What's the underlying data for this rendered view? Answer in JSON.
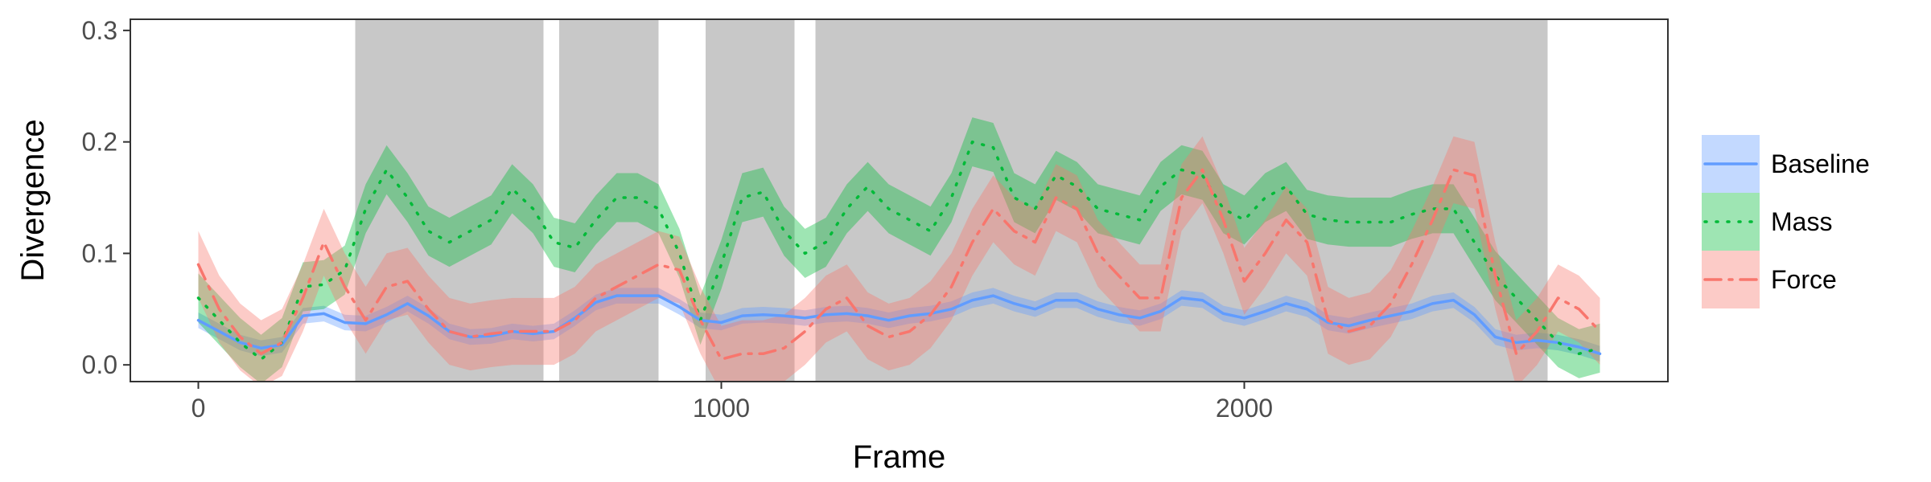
{
  "chart_data": {
    "type": "line",
    "xlabel": "Frame",
    "ylabel": "Divergence",
    "xlim": [
      -130,
      2810
    ],
    "ylim": [
      -0.015,
      0.31
    ],
    "xticks": [
      0,
      1000,
      2000
    ],
    "yticks": [
      0.0,
      0.1,
      0.2,
      0.3
    ],
    "ytick_labels": [
      "0.0",
      "0.1",
      "0.2",
      "0.3"
    ],
    "grid": false,
    "legend_position": "right",
    "shaded_intervals": [
      [
        300,
        660
      ],
      [
        690,
        880
      ],
      [
        970,
        1140
      ],
      [
        1180,
        2580
      ]
    ],
    "shade_color": "#c8c8c8",
    "x": [
      0,
      40,
      80,
      120,
      160,
      200,
      240,
      280,
      320,
      360,
      400,
      440,
      480,
      520,
      560,
      600,
      640,
      680,
      720,
      760,
      800,
      840,
      880,
      920,
      960,
      1000,
      1040,
      1080,
      1120,
      1160,
      1200,
      1240,
      1280,
      1320,
      1360,
      1400,
      1440,
      1480,
      1520,
      1560,
      1600,
      1640,
      1680,
      1720,
      1760,
      1800,
      1840,
      1880,
      1920,
      1960,
      2000,
      2040,
      2080,
      2120,
      2160,
      2200,
      2240,
      2280,
      2320,
      2360,
      2400,
      2440,
      2480,
      2520,
      2560,
      2600,
      2640,
      2680
    ],
    "series": [
      {
        "name": "Baseline",
        "color": "#619CFF",
        "line_style": "solid",
        "values": [
          0.04,
          0.03,
          0.02,
          0.015,
          0.018,
          0.044,
          0.046,
          0.038,
          0.037,
          0.045,
          0.055,
          0.044,
          0.03,
          0.025,
          0.026,
          0.03,
          0.028,
          0.03,
          0.042,
          0.056,
          0.062,
          0.062,
          0.062,
          0.052,
          0.04,
          0.038,
          0.044,
          0.045,
          0.044,
          0.042,
          0.045,
          0.046,
          0.044,
          0.04,
          0.044,
          0.046,
          0.05,
          0.058,
          0.062,
          0.055,
          0.05,
          0.058,
          0.058,
          0.05,
          0.045,
          0.042,
          0.048,
          0.06,
          0.058,
          0.046,
          0.042,
          0.048,
          0.055,
          0.05,
          0.038,
          0.035,
          0.04,
          0.044,
          0.048,
          0.055,
          0.058,
          0.045,
          0.025,
          0.02,
          0.022,
          0.02,
          0.016,
          0.01
        ],
        "band": 0.007
      },
      {
        "name": "Mass",
        "color": "#00BA38",
        "line_style": "dotted",
        "values": [
          0.06,
          0.04,
          0.02,
          0.005,
          0.02,
          0.07,
          0.072,
          0.085,
          0.14,
          0.175,
          0.15,
          0.12,
          0.11,
          0.12,
          0.13,
          0.158,
          0.14,
          0.11,
          0.105,
          0.13,
          0.15,
          0.15,
          0.14,
          0.1,
          0.04,
          0.09,
          0.15,
          0.155,
          0.12,
          0.1,
          0.11,
          0.14,
          0.16,
          0.14,
          0.13,
          0.12,
          0.15,
          0.2,
          0.195,
          0.15,
          0.14,
          0.17,
          0.16,
          0.14,
          0.135,
          0.13,
          0.16,
          0.175,
          0.17,
          0.14,
          0.13,
          0.15,
          0.16,
          0.135,
          0.13,
          0.128,
          0.128,
          0.128,
          0.135,
          0.14,
          0.14,
          0.11,
          0.08,
          0.06,
          0.04,
          0.02,
          0.01,
          0.015
        ],
        "band": 0.022
      },
      {
        "name": "Force",
        "color": "#F8766D",
        "line_style": "dashdot",
        "values": [
          0.09,
          0.05,
          0.025,
          0.01,
          0.02,
          0.06,
          0.11,
          0.07,
          0.04,
          0.07,
          0.075,
          0.05,
          0.03,
          0.025,
          0.028,
          0.03,
          0.03,
          0.03,
          0.04,
          0.06,
          0.07,
          0.08,
          0.09,
          0.085,
          0.04,
          0.005,
          0.01,
          0.01,
          0.015,
          0.03,
          0.05,
          0.06,
          0.035,
          0.025,
          0.03,
          0.045,
          0.07,
          0.11,
          0.14,
          0.12,
          0.11,
          0.15,
          0.14,
          0.1,
          0.08,
          0.06,
          0.06,
          0.15,
          0.175,
          0.13,
          0.075,
          0.1,
          0.13,
          0.11,
          0.04,
          0.03,
          0.035,
          0.055,
          0.09,
          0.13,
          0.175,
          0.17,
          0.08,
          0.01,
          0.03,
          0.06,
          0.05,
          0.03
        ],
        "band": 0.03
      }
    ]
  }
}
